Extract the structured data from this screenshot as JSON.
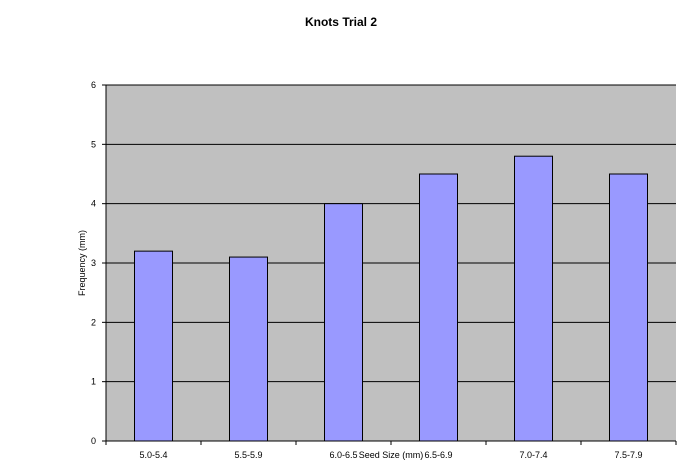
{
  "chart_data": {
    "type": "bar",
    "title": "Knots Trial 2",
    "xlabel": "Seed Size (mm)",
    "ylabel": "Frequency (mm)",
    "categories": [
      "5.0-5.4",
      "5.5-5.9",
      "6.0-6.5",
      "6.5-6.9",
      "7.0-7.4",
      "7.5-7.9"
    ],
    "values": [
      3.2,
      3.1,
      4.0,
      4.5,
      4.8,
      4.5
    ],
    "ylim": [
      0,
      6
    ],
    "yticks": [
      "0",
      "1",
      "2",
      "3",
      "4",
      "5",
      "6"
    ],
    "grid": true,
    "legend": "none",
    "colors": {
      "bar": "#9999ff",
      "plot_background": "#c0c0c0",
      "page_background": "#ffffff"
    }
  }
}
